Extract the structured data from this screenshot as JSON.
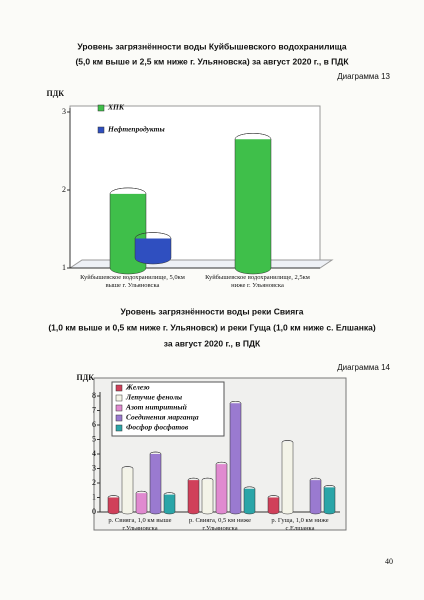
{
  "chart_data": [
    {
      "type": "bar",
      "title": [
        "Уровень загрязнённости воды Куйбышевского водохранилища",
        "(5,0 км выше и 2,5 км ниже г. Ульяновска) за август 2020 г., в ПДК"
      ],
      "diagram_label": "Диаграмма 13",
      "y_label": "ПДК",
      "categories": [
        "Куйбышевское водохранилище, 5,0км выше г. Ульяновска",
        "Куйбышевское водохранилище, 2,5км ниже г. Ульяновска"
      ],
      "series": [
        {
          "name": "ХПК",
          "color": "#3fbf4a",
          "values": [
            1.95,
            2.65
          ]
        },
        {
          "name": "Нефтепродукты",
          "color": "#2f4fc0",
          "values": [
            1.25,
            null
          ]
        }
      ],
      "ylim": [
        1,
        3
      ],
      "yticks": [
        1,
        2,
        3
      ],
      "legend": "upper left"
    },
    {
      "type": "bar",
      "title": [
        "Уровень загрязнённости воды реки Свияга",
        "(1,0 км выше и 0,5 км ниже г. Ульяновск) и реки Гуща (1,0 км ниже с. Елшанка)",
        "за август 2020 г., в ПДК"
      ],
      "diagram_label": "Диаграмма 14",
      "y_label": "ПДК",
      "categories": [
        "р. Свияга, 1,0 км выше г.Ульяновска",
        "р. Свияга, 0,5 км ниже г.Ульяновска",
        "р. Гуща, 1,0 км ниже с.Елшанка"
      ],
      "series": [
        {
          "name": "Железо",
          "color": "#d0405a",
          "values": [
            1.0,
            2.2,
            1.0
          ]
        },
        {
          "name": "Летучие фенолы",
          "color": "#f4f4e8",
          "values": [
            3.0,
            2.2,
            4.8
          ]
        },
        {
          "name": "Азот нитритный",
          "color": "#e08ad0",
          "values": [
            1.3,
            3.3,
            null
          ]
        },
        {
          "name": "Соединения марганца",
          "color": "#9a7ad0",
          "values": [
            4.0,
            7.5,
            2.2
          ]
        },
        {
          "name": "Фосфор фосфатов",
          "color": "#2aa5a8",
          "values": [
            1.2,
            1.6,
            1.7
          ]
        }
      ],
      "ylim": [
        0,
        8
      ],
      "yticks": [
        0,
        1,
        2,
        3,
        4,
        5,
        6,
        7,
        8
      ],
      "legend": "upper left"
    }
  ],
  "page_number": "40"
}
